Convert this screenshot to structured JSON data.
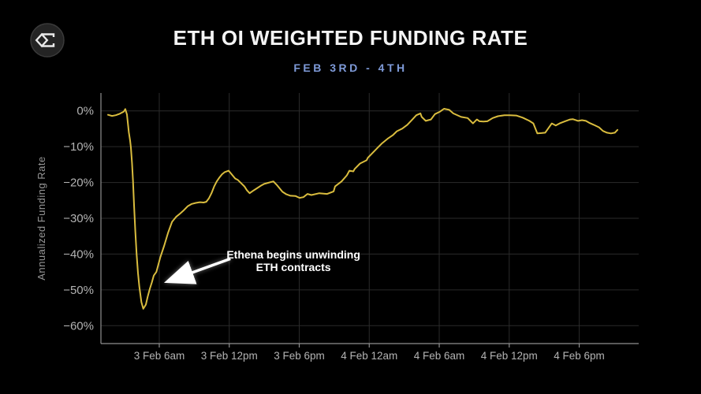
{
  "brand": {
    "logo_icon": "sigma-diamond-logo"
  },
  "header": {
    "title": "ETH OI WEIGHTED FUNDING RATE",
    "subtitle": "FEB 3RD - 4TH"
  },
  "colors": {
    "background": "#000000",
    "title_text": "#f4f4f4",
    "subtitle_accent": "#7e9ad8",
    "line": "#d9bc3e",
    "grid": "#2b2b2b",
    "axis": "#8f8f8f",
    "tick_label": "#b3b3b3",
    "y_axis_title": "#969696",
    "annotation": "#ffffff",
    "logo_circle": "#242424",
    "logo_ring": "#3a3a3a",
    "logo_glyph": "#e9e9e9"
  },
  "chart_data": {
    "type": "line",
    "title": "ETH OI WEIGHTED FUNDING RATE",
    "subtitle": "FEB 3RD - 4TH",
    "xlabel": "",
    "ylabel": "Annualized Funding Rate",
    "grid": true,
    "legend": "none",
    "y_ticks": [
      {
        "label": "0%",
        "value": 0
      },
      {
        "label": "−10%",
        "value": -10
      },
      {
        "label": "−20%",
        "value": -20
      },
      {
        "label": "−30%",
        "value": -30
      },
      {
        "label": "−40%",
        "value": -40
      },
      {
        "label": "−50%",
        "value": -50
      },
      {
        "label": "−60%",
        "value": -60
      }
    ],
    "x_ticks": [
      {
        "label": "3 Feb 6am",
        "hour": 6
      },
      {
        "label": "3 Feb 12pm",
        "hour": 12
      },
      {
        "label": "3 Feb 6pm",
        "hour": 18
      },
      {
        "label": "4 Feb 12am",
        "hour": 24
      },
      {
        "label": "4 Feb 6am",
        "hour": 30
      },
      {
        "label": "4 Feb 12pm",
        "hour": 36
      },
      {
        "label": "4 Feb 6pm",
        "hour": 42
      }
    ],
    "xlim_hours_from_feb3_midnight": [
      1,
      47.1
    ],
    "ylim_percent": [
      -65,
      5
    ],
    "series": [
      {
        "name": "ETH OI weighted funding rate (annualized %)",
        "x_unit": "hours from 3 Feb 00:00",
        "y_unit": "percent",
        "points": [
          [
            1.61,
            -1.1
          ],
          [
            1.95,
            -1.4
          ],
          [
            2.28,
            -1.2
          ],
          [
            2.62,
            -0.8
          ],
          [
            2.96,
            -0.2
          ],
          [
            3.09,
            0.5
          ],
          [
            3.23,
            -1.0
          ],
          [
            3.39,
            -6.0
          ],
          [
            3.5,
            -8.3
          ],
          [
            3.57,
            -10.2
          ],
          [
            3.66,
            -14.5
          ],
          [
            3.75,
            -19.7
          ],
          [
            3.84,
            -26.3
          ],
          [
            3.95,
            -33.6
          ],
          [
            4.06,
            -40.2
          ],
          [
            4.18,
            -45.3
          ],
          [
            4.29,
            -49.1
          ],
          [
            4.47,
            -53.4
          ],
          [
            4.63,
            -55.3
          ],
          [
            4.85,
            -54.1
          ],
          [
            5.01,
            -51.9
          ],
          [
            5.19,
            -49.7
          ],
          [
            5.37,
            -47.9
          ],
          [
            5.53,
            -46.0
          ],
          [
            5.75,
            -45.0
          ],
          [
            6.09,
            -40.9
          ],
          [
            6.43,
            -37.6
          ],
          [
            6.76,
            -34.0
          ],
          [
            7.1,
            -31.0
          ],
          [
            7.44,
            -29.6
          ],
          [
            7.78,
            -28.7
          ],
          [
            8.12,
            -27.7
          ],
          [
            8.45,
            -26.6
          ],
          [
            8.79,
            -26.0
          ],
          [
            9.13,
            -25.7
          ],
          [
            9.47,
            -25.5
          ],
          [
            9.8,
            -25.6
          ],
          [
            10.03,
            -25.4
          ],
          [
            10.26,
            -24.4
          ],
          [
            10.48,
            -23.0
          ],
          [
            10.71,
            -21.1
          ],
          [
            10.93,
            -19.7
          ],
          [
            11.16,
            -18.6
          ],
          [
            11.38,
            -17.7
          ],
          [
            11.61,
            -17.1
          ],
          [
            11.95,
            -16.7
          ],
          [
            12.51,
            -18.9
          ],
          [
            12.74,
            -19.3
          ],
          [
            12.96,
            -20.0
          ],
          [
            13.3,
            -21.1
          ],
          [
            13.52,
            -22.2
          ],
          [
            13.75,
            -23.0
          ],
          [
            14.09,
            -22.2
          ],
          [
            14.43,
            -21.5
          ],
          [
            14.76,
            -20.8
          ],
          [
            14.99,
            -20.4
          ],
          [
            15.78,
            -19.7
          ],
          [
            16.11,
            -20.8
          ],
          [
            16.56,
            -22.6
          ],
          [
            16.9,
            -23.3
          ],
          [
            17.24,
            -23.7
          ],
          [
            17.69,
            -23.8
          ],
          [
            18.03,
            -24.3
          ],
          [
            18.36,
            -24.1
          ],
          [
            18.7,
            -23.2
          ],
          [
            19.04,
            -23.5
          ],
          [
            19.72,
            -23.0
          ],
          [
            20.39,
            -23.2
          ],
          [
            20.95,
            -22.5
          ],
          [
            21.07,
            -21.1
          ],
          [
            21.63,
            -19.7
          ],
          [
            22.08,
            -18.0
          ],
          [
            22.3,
            -16.7
          ],
          [
            22.64,
            -16.9
          ],
          [
            22.76,
            -16.2
          ],
          [
            23.21,
            -14.7
          ],
          [
            23.77,
            -13.8
          ],
          [
            23.88,
            -13.1
          ],
          [
            24.33,
            -11.6
          ],
          [
            24.78,
            -10.1
          ],
          [
            25.12,
            -9.0
          ],
          [
            25.57,
            -7.8
          ],
          [
            26.02,
            -6.8
          ],
          [
            26.36,
            -5.7
          ],
          [
            26.81,
            -5.0
          ],
          [
            27.26,
            -3.9
          ],
          [
            27.7,
            -2.4
          ],
          [
            28.04,
            -1.2
          ],
          [
            28.39,
            -0.7
          ],
          [
            28.5,
            -1.7
          ],
          [
            28.84,
            -2.8
          ],
          [
            29.29,
            -2.4
          ],
          [
            29.63,
            -0.9
          ],
          [
            30.07,
            -0.2
          ],
          [
            30.41,
            0.6
          ],
          [
            30.86,
            0.3
          ],
          [
            31.2,
            -0.7
          ],
          [
            31.88,
            -1.7
          ],
          [
            32.44,
            -2.0
          ],
          [
            32.89,
            -3.5
          ],
          [
            33.23,
            -2.4
          ],
          [
            33.45,
            -2.9
          ],
          [
            33.79,
            -3.0
          ],
          [
            34.13,
            -2.9
          ],
          [
            34.58,
            -2.0
          ],
          [
            35.03,
            -1.5
          ],
          [
            35.59,
            -1.2
          ],
          [
            36.04,
            -1.2
          ],
          [
            36.6,
            -1.3
          ],
          [
            37.16,
            -1.9
          ],
          [
            37.73,
            -2.8
          ],
          [
            38.07,
            -3.5
          ],
          [
            38.41,
            -6.3
          ],
          [
            38.75,
            -6.2
          ],
          [
            39.08,
            -6.1
          ],
          [
            39.65,
            -3.5
          ],
          [
            39.99,
            -4.1
          ],
          [
            40.32,
            -3.5
          ],
          [
            40.78,
            -2.9
          ],
          [
            41.22,
            -2.4
          ],
          [
            41.45,
            -2.3
          ],
          [
            41.9,
            -2.8
          ],
          [
            42.24,
            -2.6
          ],
          [
            42.57,
            -2.8
          ],
          [
            42.91,
            -3.4
          ],
          [
            43.25,
            -3.9
          ],
          [
            43.7,
            -4.6
          ],
          [
            44.04,
            -5.6
          ],
          [
            44.38,
            -6.1
          ],
          [
            44.72,
            -6.3
          ],
          [
            45.05,
            -6.1
          ],
          [
            45.28,
            -5.3
          ]
        ]
      }
    ],
    "annotation": {
      "line1": "Ethena begins unwinding",
      "line2": "ETH contracts",
      "text_pos": {
        "hour": 17.5,
        "percent": -42.5
      },
      "arrow_tail": {
        "hour": 12.1,
        "percent": -41.3
      },
      "arrow_tip": {
        "hour": 6.85,
        "percent": -47.5
      }
    }
  }
}
